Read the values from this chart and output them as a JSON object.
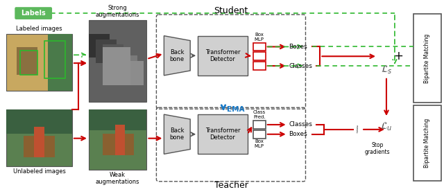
{
  "fig_width": 6.4,
  "fig_height": 2.8,
  "dpi": 100,
  "bg_color": "#ffffff",
  "green_color": "#2db82d",
  "red_color": "#cc0000",
  "blue_color": "#1a7ac7",
  "gray_color": "#808080",
  "dark_gray": "#555555",
  "light_gray": "#cccccc",
  "box_gray": "#d0d0d0",
  "labels_tag_color": "#5cb85c",
  "labels_tag_text": "Labels",
  "labeled_images_text": "Labeled images",
  "unlabeled_images_text": "Unlabeled images",
  "strong_aug_text": "Strong\naugmentations",
  "weak_aug_text": "Weak\naugmentations",
  "student_text": "Student",
  "teacher_text": "Teacher",
  "backbone_text": "Back\nbone",
  "transformer_text": "Transformer\nDetector",
  "box_mlp_top_text": "Box\nMLP",
  "class_pred_text": "Class\nPred.",
  "box_mlp_bot_text": "Box\nMLP",
  "boxes_top_text": "Boxes",
  "classes_top_text": "Classes",
  "classes_bot_text": "Classes",
  "boxes_bot_text": "Boxes",
  "ema_text": "EMA",
  "ls_text": "$\\mathcal{L}_s$",
  "lu_text": "$\\mathcal{L}_u$",
  "plus_text": "+",
  "stop_grad_text": "Stop\ngradients",
  "bipartite_top_text": "Bipartite Matching",
  "bipartite_bot_text": "Bipartite Matching"
}
